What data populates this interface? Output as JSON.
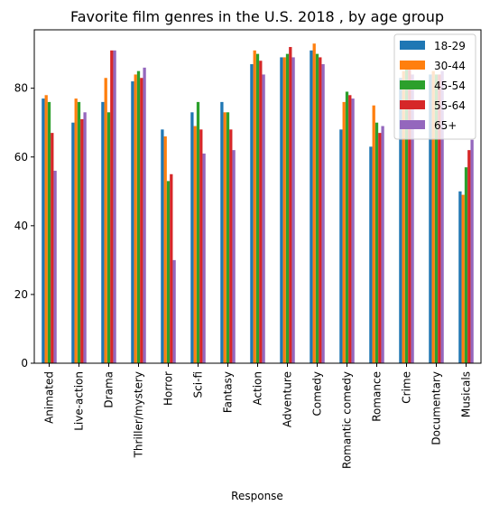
{
  "chart_data": {
    "type": "bar",
    "title": "Favorite film genres in the U.S. 2018 , by age group",
    "xlabel": "Response",
    "ylabel": "",
    "ylim": [
      0,
      97
    ],
    "yticks": [
      0,
      20,
      40,
      60,
      80
    ],
    "grid": false,
    "legend_position": "top-right",
    "categories": [
      "Animated",
      "Live-action",
      "Drama",
      "Thriller/mystery",
      "Horror",
      "Sci-fi",
      "Fantasy",
      "Action",
      "Adventure",
      "Comedy",
      "Romantic comedy",
      "Romance",
      "Crime",
      "Documentary",
      "Musicals"
    ],
    "series": [
      {
        "name": "18-29",
        "color": "#1f77b4",
        "values": [
          77,
          70,
          76,
          82,
          68,
          73,
          76,
          87,
          89,
          91,
          68,
          63,
          83,
          84,
          50
        ]
      },
      {
        "name": "30-44",
        "color": "#ff7f0e",
        "values": [
          78,
          77,
          83,
          84,
          66,
          69,
          73,
          91,
          89,
          93,
          76,
          75,
          85,
          85,
          49
        ]
      },
      {
        "name": "45-54",
        "color": "#2ca02c",
        "values": [
          76,
          76,
          73,
          85,
          53,
          76,
          73,
          90,
          90,
          90,
          79,
          70,
          86,
          84,
          57
        ]
      },
      {
        "name": "55-64",
        "color": "#d62728",
        "values": [
          67,
          71,
          91,
          83,
          55,
          68,
          68,
          88,
          92,
          89,
          78,
          67,
          86,
          84,
          62
        ]
      },
      {
        "name": "65+",
        "color": "#9467bd",
        "values": [
          56,
          73,
          91,
          86,
          30,
          61,
          62,
          84,
          89,
          87,
          77,
          69,
          84,
          85,
          65
        ]
      }
    ]
  }
}
